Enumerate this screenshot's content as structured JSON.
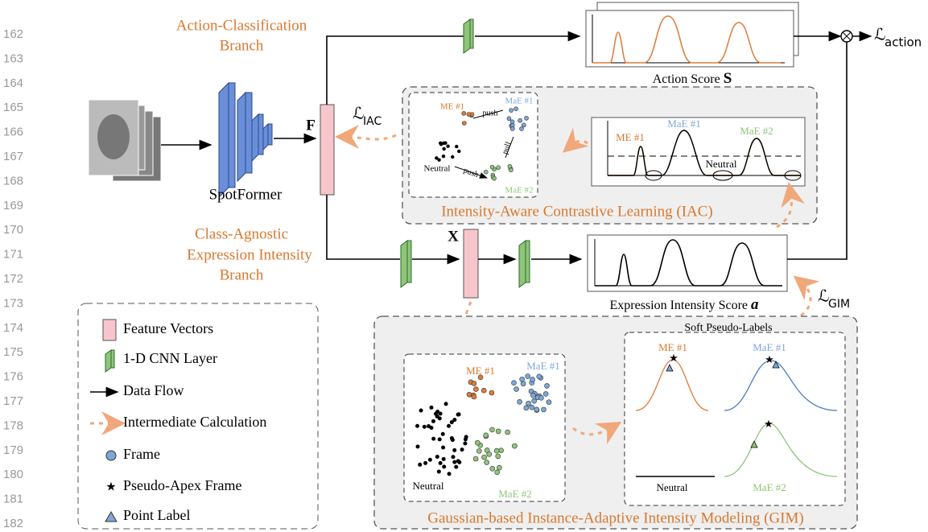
{
  "line_numbers": [
    "162",
    "163",
    "164",
    "165",
    "166",
    "167",
    "168",
    "169",
    "170",
    "171",
    "172",
    "173",
    "174",
    "175",
    "176",
    "177",
    "178",
    "179",
    "180",
    "181",
    "182"
  ],
  "backbone": "SpotFormer",
  "feature_F": "F",
  "feature_X": "X",
  "action_branch": {
    "label_lines": [
      "Action-Classification",
      "Branch"
    ],
    "score_caption": "Action Score",
    "score_symbol": "S",
    "loss": {
      "symbol": "ℒ",
      "subscript": "action"
    }
  },
  "intensity_branch": {
    "label_lines": [
      "Class-Agnostic",
      "Expression Intensity",
      "Branch"
    ],
    "score_caption": "Expression Intensity Score",
    "score_symbol": "a",
    "loss": {
      "symbol": "ℒ",
      "subscript": "GIM"
    }
  },
  "iac": {
    "title": "Intensity-Aware Contrastive Learning (IAC)",
    "loss": {
      "symbol": "ℒ",
      "subscript": "IAC"
    },
    "scatter": {
      "me": "ME #1",
      "mae1": "MaE #1",
      "mae2": "MaE #2",
      "neutral": "Neutral",
      "push_1": "push",
      "pull": "pull",
      "push_2": "push"
    },
    "plot": {
      "me": "ME #1",
      "mae1": "MaE #1",
      "mae2": "MaE #2",
      "neutral": "Neutral"
    }
  },
  "gim": {
    "title": "Gaussian-based Instance-Adaptive Intensity Modeling (GIM)",
    "scatter": {
      "me": "ME #1",
      "mae1": "MaE #1",
      "mae2": "MaE #2",
      "neutral": "Neutral"
    },
    "soft_labels": {
      "title": "Soft Pseudo-Labels",
      "me": "ME #1",
      "mae1": "MaE #1",
      "neutral": "Neutral",
      "mae2": "MaE #2"
    }
  },
  "legend": [
    "Feature Vectors",
    "1-D CNN Layer",
    "Data Flow",
    "Intermediate Calculation",
    "Frame",
    "Pseudo-Apex Frame",
    "Point Label"
  ]
}
